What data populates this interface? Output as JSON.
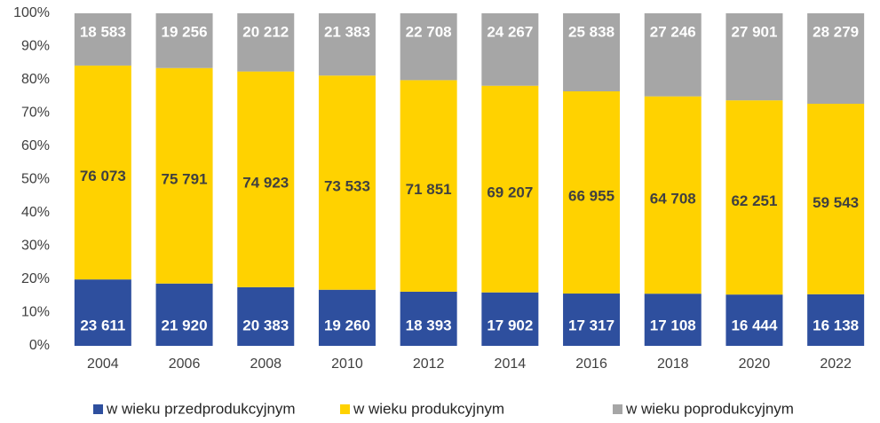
{
  "chart_data": {
    "type": "bar",
    "stacking": "percent",
    "categories": [
      "2004",
      "2006",
      "2008",
      "2010",
      "2012",
      "2014",
      "2016",
      "2018",
      "2020",
      "2022"
    ],
    "series": [
      {
        "name": "w wieku przedprodukcyjnym",
        "color": "#2e4f9e",
        "label_color": "#ffffff",
        "values": [
          23611,
          21920,
          20383,
          19260,
          18393,
          17902,
          17317,
          17108,
          16444,
          16138
        ],
        "value_labels": [
          "23 611",
          "21 920",
          "20 383",
          "19 260",
          "18 393",
          "17 902",
          "17 317",
          "17 108",
          "16 444",
          "16 138"
        ]
      },
      {
        "name": "w wieku produkcyjnym",
        "color": "#ffd200",
        "label_color": "#404040",
        "values": [
          76073,
          75791,
          74923,
          73533,
          71851,
          69207,
          66955,
          64708,
          62251,
          59543
        ],
        "value_labels": [
          "76 073",
          "75 791",
          "74 923",
          "73 533",
          "71 851",
          "69 207",
          "66 955",
          "64 708",
          "62 251",
          "59 543"
        ]
      },
      {
        "name": "w wieku poprodukcyjnym",
        "color": "#a6a6a6",
        "label_color": "#ffffff",
        "values": [
          18583,
          19256,
          20212,
          21383,
          22708,
          24267,
          25838,
          27246,
          27901,
          28279
        ],
        "value_labels": [
          "18 583",
          "19 256",
          "20 212",
          "21 383",
          "22 708",
          "24 267",
          "25 838",
          "27 246",
          "27 901",
          "28 279"
        ]
      }
    ],
    "ylim": [
      0,
      100
    ],
    "yticks": [
      {
        "value": 0,
        "label": "0%"
      },
      {
        "value": 10,
        "label": "10%"
      },
      {
        "value": 20,
        "label": "20%"
      },
      {
        "value": 30,
        "label": "30%"
      },
      {
        "value": 40,
        "label": "40%"
      },
      {
        "value": 50,
        "label": "50%"
      },
      {
        "value": 60,
        "label": "60%"
      },
      {
        "value": 70,
        "label": "70%"
      },
      {
        "value": 80,
        "label": "80%"
      },
      {
        "value": 90,
        "label": "90%"
      },
      {
        "value": 100,
        "label": "100%"
      }
    ],
    "legend": "bottom"
  }
}
